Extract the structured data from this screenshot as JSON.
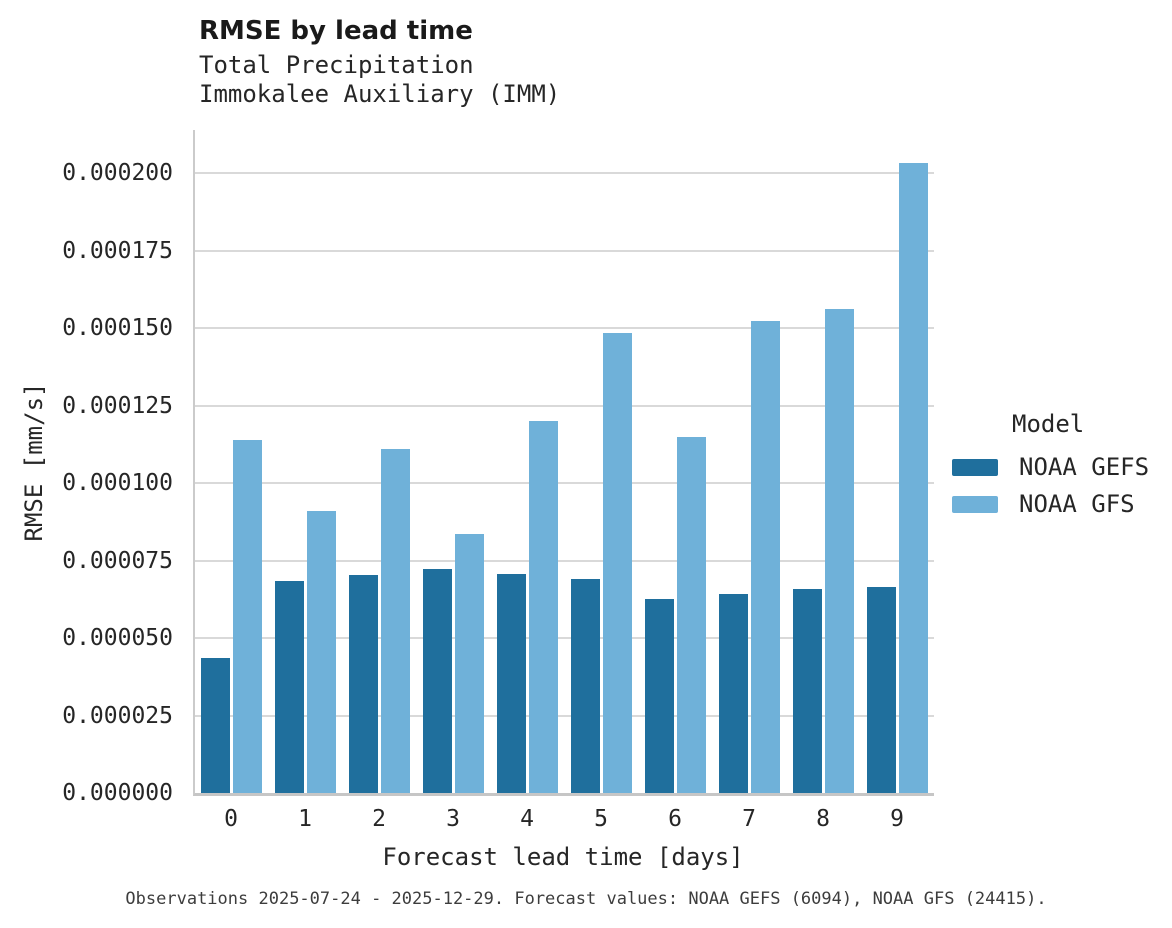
{
  "chart_data": {
    "type": "bar",
    "title": "RMSE by lead time",
    "subtitle": "Total Precipitation",
    "subtitle2": "Immokalee Auxiliary (IMM)",
    "xlabel": "Forecast lead time [days]",
    "ylabel": "RMSE [mm/s]",
    "legend_title": "Model",
    "legend_position": "right",
    "grid": true,
    "categories": [
      "0",
      "1",
      "2",
      "3",
      "4",
      "5",
      "6",
      "7",
      "8",
      "9"
    ],
    "series": [
      {
        "name": "NOAA GEFS",
        "color": "#1f6f9d",
        "values": [
          4.35e-05,
          6.85e-05,
          7.04e-05,
          7.24e-05,
          7.06e-05,
          6.92e-05,
          6.27e-05,
          6.43e-05,
          6.6e-05,
          6.66e-05
        ]
      },
      {
        "name": "NOAA GFS",
        "color": "#6fb1d9",
        "values": [
          0.0001139,
          9.09e-05,
          0.000111,
          8.36e-05,
          0.0001201,
          0.0001484,
          0.000115,
          0.0001524,
          0.0001562,
          0.0002033
        ]
      }
    ],
    "ylim": [
      0,
      0.000214
    ],
    "ytick_values": [
      0,
      2.5e-05,
      5e-05,
      7.5e-05,
      0.0001,
      0.000125,
      0.00015,
      0.000175,
      0.0002
    ],
    "ytick_labels": [
      "0.000000",
      "0.000025",
      "0.000050",
      "0.000075",
      "0.000100",
      "0.000125",
      "0.000150",
      "0.000175",
      "0.000200"
    ],
    "caption": "Observations 2025-07-24 - 2025-12-29. Forecast values: NOAA GEFS (6094), NOAA GFS (24415)."
  },
  "colors": {
    "gefs_bar": "#1f6f9d",
    "gfs_bar": "#6fb1d9",
    "gridline": "#d9d9d9",
    "axis_spine": "#c6c6c6",
    "title_text": "#1a1a1a",
    "body_text": "#262626",
    "caption_text": "#3d3d3d"
  }
}
